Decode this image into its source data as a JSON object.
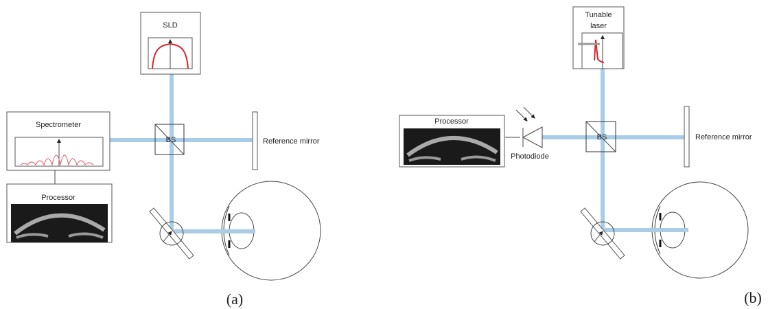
{
  "panels": [
    {
      "label": "(a)",
      "source": [
        "SLD"
      ],
      "detector": "Spectrometer",
      "splitter": "BS",
      "mirror": "Reference mirror",
      "processor": "Processor"
    },
    {
      "label": "(b)",
      "source": [
        "Tunable",
        "laser"
      ],
      "detector": "Photodiode",
      "splitter": "BS",
      "mirror": "Reference mirror",
      "processor": "Processor"
    }
  ]
}
